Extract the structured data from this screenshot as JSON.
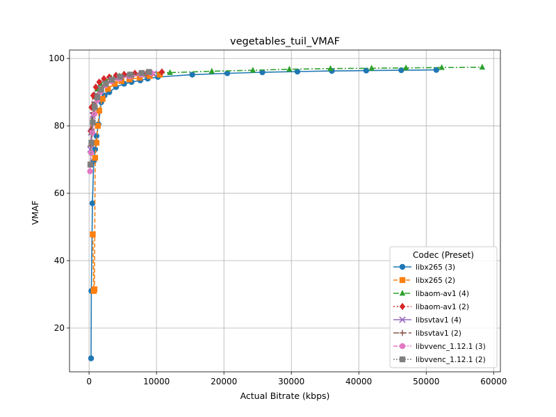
{
  "chart_data": {
    "type": "line",
    "title": "vegetables_tuil_VMAF",
    "xlabel": "Actual Bitrate (kbps)",
    "ylabel": "VMAF",
    "xlim": [
      -2900,
      61000
    ],
    "ylim": [
      7,
      102.5
    ],
    "xticks": [
      0,
      10000,
      20000,
      30000,
      40000,
      50000,
      60000
    ],
    "yticks": [
      20,
      40,
      60,
      80,
      100
    ],
    "grid": true,
    "legend": {
      "title": "Codec (Preset)",
      "placement": "lower-right"
    },
    "series": [
      {
        "name": "libx265 (3)",
        "color": "#1f77b4",
        "marker": "circle",
        "dash": "solid",
        "points": [
          [
            300,
            11
          ],
          [
            340,
            31
          ],
          [
            500,
            57
          ],
          [
            700,
            69.5
          ],
          [
            900,
            73
          ],
          [
            1100,
            77
          ],
          [
            1400,
            80.5
          ],
          [
            1800,
            87
          ],
          [
            2300,
            89
          ],
          [
            3000,
            90
          ],
          [
            4000,
            91.5
          ],
          [
            5200,
            92.5
          ],
          [
            6300,
            93
          ],
          [
            7600,
            93.5
          ],
          [
            8700,
            94
          ],
          [
            10200,
            94.5
          ],
          [
            15300,
            95.2
          ],
          [
            20500,
            95.6
          ],
          [
            25700,
            95.9
          ],
          [
            30900,
            96.1
          ],
          [
            36000,
            96.3
          ],
          [
            41100,
            96.4
          ],
          [
            46300,
            96.5
          ],
          [
            51500,
            96.6
          ]
        ]
      },
      {
        "name": "libx265 (2)",
        "color": "#ff7f0e",
        "marker": "square",
        "dash": "6,3",
        "points": [
          [
            550,
            47.8
          ],
          [
            700,
            31
          ],
          [
            800,
            31.5
          ],
          [
            900,
            70.5
          ],
          [
            1100,
            75
          ],
          [
            1300,
            80
          ],
          [
            1500,
            84.5
          ],
          [
            2000,
            88
          ],
          [
            2800,
            91
          ],
          [
            3800,
            92.5
          ],
          [
            4800,
            93.3
          ],
          [
            6000,
            93.8
          ],
          [
            7500,
            94.3
          ],
          [
            9000,
            94.8
          ],
          [
            10500,
            95.2
          ]
        ]
      },
      {
        "name": "libaom-av1 (4)",
        "color": "#2ca02c",
        "marker": "triangle",
        "dash": "8,3,2,3",
        "points": [
          [
            300,
            78
          ],
          [
            500,
            86
          ],
          [
            800,
            89
          ],
          [
            1200,
            91
          ],
          [
            1700,
            92.5
          ],
          [
            2400,
            93.5
          ],
          [
            3300,
            94.2
          ],
          [
            4500,
            94.8
          ],
          [
            6000,
            95.2
          ],
          [
            8000,
            95.5
          ],
          [
            12000,
            95.8
          ],
          [
            18200,
            96.2
          ],
          [
            24300,
            96.5
          ],
          [
            29700,
            96.8
          ],
          [
            35800,
            97
          ],
          [
            41900,
            97.1
          ],
          [
            47000,
            97.2
          ],
          [
            52300,
            97.3
          ],
          [
            58300,
            97.4
          ]
        ]
      },
      {
        "name": "libaom-av1 (2)",
        "color": "#d62728",
        "marker": "diamond",
        "dash": "2,3",
        "points": [
          [
            200,
            78.5
          ],
          [
            350,
            85.5
          ],
          [
            600,
            89
          ],
          [
            1000,
            91.5
          ],
          [
            1500,
            93
          ],
          [
            2200,
            94
          ],
          [
            3000,
            94.5
          ],
          [
            4000,
            95
          ],
          [
            5200,
            95.3
          ],
          [
            6800,
            95.6
          ],
          [
            8600,
            95.8
          ],
          [
            10800,
            96
          ]
        ]
      },
      {
        "name": "libsvtav1 (4)",
        "color": "#9467bd",
        "marker": "x",
        "dash": "solid",
        "points": [
          [
            200,
            73
          ],
          [
            350,
            78
          ],
          [
            550,
            83
          ],
          [
            800,
            86.5
          ],
          [
            1200,
            89
          ],
          [
            1700,
            91
          ],
          [
            2400,
            92.5
          ],
          [
            3300,
            93.5
          ],
          [
            4500,
            94.3
          ],
          [
            6000,
            94.8
          ],
          [
            7800,
            95.2
          ],
          [
            9600,
            95.5
          ]
        ]
      },
      {
        "name": "libsvtav1 (2)",
        "color": "#8c564b",
        "marker": "plus",
        "dash": "8,3",
        "points": [
          [
            250,
            74
          ],
          [
            400,
            79
          ],
          [
            600,
            84
          ],
          [
            900,
            87
          ],
          [
            1300,
            89.5
          ],
          [
            1900,
            91.5
          ],
          [
            2700,
            92.8
          ],
          [
            3700,
            93.8
          ],
          [
            5000,
            94.5
          ],
          [
            6600,
            95
          ],
          [
            8400,
            95.4
          ]
        ]
      },
      {
        "name": "libvvenc_1.12.1 (3)",
        "color": "#e377c2",
        "marker": "circle",
        "dash": "6,2,2,2",
        "points": [
          [
            150,
            66.5
          ],
          [
            300,
            72
          ],
          [
            500,
            78
          ],
          [
            800,
            83.5
          ],
          [
            1200,
            87.5
          ],
          [
            1700,
            90
          ],
          [
            2400,
            92
          ],
          [
            3300,
            93.2
          ],
          [
            4500,
            94
          ],
          [
            6000,
            94.7
          ],
          [
            7700,
            95.2
          ],
          [
            9300,
            95.6
          ]
        ]
      },
      {
        "name": "libvvenc_1.12.1 (2)",
        "color": "#7f7f7f",
        "marker": "square",
        "dash": "2,2",
        "points": [
          [
            200,
            68.5
          ],
          [
            350,
            75
          ],
          [
            550,
            81
          ],
          [
            850,
            85.5
          ],
          [
            1250,
            88.5
          ],
          [
            1800,
            90.8
          ],
          [
            2500,
            92.5
          ],
          [
            3400,
            93.7
          ],
          [
            4600,
            94.6
          ],
          [
            6100,
            95.2
          ],
          [
            7800,
            95.7
          ],
          [
            8900,
            96
          ]
        ]
      }
    ]
  }
}
